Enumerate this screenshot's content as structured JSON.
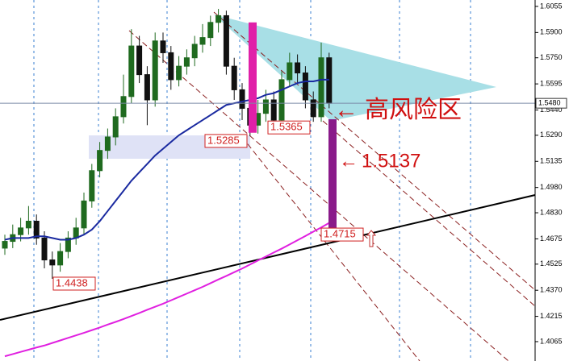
{
  "chart_data": {
    "type": "candlestick",
    "up_color": "#1f6a1f",
    "down_color": "#111111",
    "open": [
      1.462,
      1.466,
      1.47,
      1.474,
      1.478,
      1.468,
      1.455,
      1.452,
      1.46,
      1.468,
      1.474,
      1.49,
      1.508,
      1.52,
      1.528,
      1.54,
      1.552,
      1.582,
      1.565,
      1.55,
      1.585,
      1.578,
      1.562,
      1.57,
      1.575,
      1.583,
      1.587,
      1.596,
      1.6,
      1.57,
      1.556,
      1.545,
      1.535,
      1.542,
      1.55,
      1.538,
      1.562,
      1.572,
      1.566,
      1.55,
      1.54,
      1.575
    ],
    "high": [
      1.47,
      1.476,
      1.48,
      1.487,
      1.482,
      1.472,
      1.46,
      1.465,
      1.472,
      1.48,
      1.495,
      1.512,
      1.525,
      1.533,
      1.545,
      1.565,
      1.592,
      1.588,
      1.57,
      1.59,
      1.59,
      1.582,
      1.576,
      1.58,
      1.588,
      1.595,
      1.6,
      1.604,
      1.603,
      1.575,
      1.56,
      1.55,
      1.55,
      1.556,
      1.555,
      1.567,
      1.578,
      1.577,
      1.57,
      1.555,
      1.584,
      1.578
    ],
    "low": [
      1.458,
      1.462,
      1.466,
      1.47,
      1.464,
      1.45,
      1.4438,
      1.448,
      1.456,
      1.464,
      1.47,
      1.486,
      1.504,
      1.515,
      1.523,
      1.536,
      1.548,
      1.56,
      1.535,
      1.546,
      1.572,
      1.556,
      1.558,
      1.565,
      1.57,
      1.578,
      1.582,
      1.59,
      1.565,
      1.55,
      1.538,
      1.5285,
      1.53,
      1.537,
      1.5365,
      1.536,
      1.558,
      1.56,
      1.545,
      1.537,
      1.537,
      1.545
    ],
    "close": [
      1.466,
      1.47,
      1.474,
      1.478,
      1.468,
      1.455,
      1.452,
      1.46,
      1.468,
      1.474,
      1.49,
      1.508,
      1.52,
      1.528,
      1.54,
      1.552,
      1.582,
      1.565,
      1.55,
      1.585,
      1.578,
      1.562,
      1.57,
      1.575,
      1.583,
      1.587,
      1.596,
      1.6,
      1.57,
      1.556,
      1.545,
      1.535,
      1.542,
      1.55,
      1.538,
      1.562,
      1.572,
      1.566,
      1.55,
      1.54,
      1.575,
      1.548
    ],
    "overlays": [
      {
        "color": "#1a2aa0",
        "values": [
          1.467,
          1.468,
          1.468,
          1.468,
          1.469,
          1.469,
          1.468,
          1.467,
          1.467,
          1.468,
          1.47,
          1.473,
          1.478,
          1.484,
          1.49,
          1.496,
          1.502,
          1.507,
          1.512,
          1.517,
          1.521,
          1.525,
          1.529,
          1.532,
          1.535,
          1.538,
          1.541,
          1.544,
          1.547,
          1.548,
          1.549,
          1.55,
          1.551,
          1.553,
          1.554,
          1.556,
          1.558,
          1.56,
          1.561,
          1.561,
          1.562,
          1.562
        ]
      },
      {
        "color": "#e020e0",
        "values": [
          1.3978,
          1.3991,
          1.4004,
          1.4017,
          1.403,
          1.4042,
          1.4057,
          1.4072,
          1.4087,
          1.4102,
          1.4117,
          1.4133,
          1.4149,
          1.4166,
          1.4182,
          1.4199,
          1.4217,
          1.4235,
          1.4254,
          1.4272,
          1.429,
          1.431,
          1.433,
          1.435,
          1.437,
          1.439,
          1.4412,
          1.4434,
          1.4455,
          1.4477,
          1.4499,
          1.4523,
          1.4547,
          1.457,
          1.4594,
          1.4617,
          1.4642,
          1.4667,
          1.4692,
          1.4718,
          1.4743,
          1.477
        ]
      }
    ],
    "projections": [
      {
        "color": "#e020a8",
        "from": 1.596,
        "to": 1.5305
      },
      {
        "color": "#8a1a8a",
        "from": 1.5385,
        "to": 1.4735
      }
    ],
    "price_labels": [
      1.4438,
      1.5285,
      1.5365,
      1.4715
    ],
    "zone_label": "高风险区",
    "target_label": 1.5137,
    "last_price": {
      "value": 1.548,
      "label": "1.5480"
    },
    "ylim": [
      1.395,
      1.6093
    ],
    "yticks": [
      1.6055,
      {
        "value": 1.59,
        "label": "1.5900"
      },
      {
        "value": 1.575,
        "label": "1.5750"
      },
      1.5595,
      {
        "value": 1.544,
        "label": "1.5440"
      },
      {
        "value": 1.529,
        "label": "1.5290"
      },
      1.5135,
      {
        "value": 1.498,
        "label": "1.4980"
      },
      {
        "value": 1.483,
        "label": "1.4830"
      },
      1.4675,
      1.4525,
      {
        "value": 1.437,
        "label": "1.4370"
      },
      1.4215,
      1.4065
    ]
  }
}
